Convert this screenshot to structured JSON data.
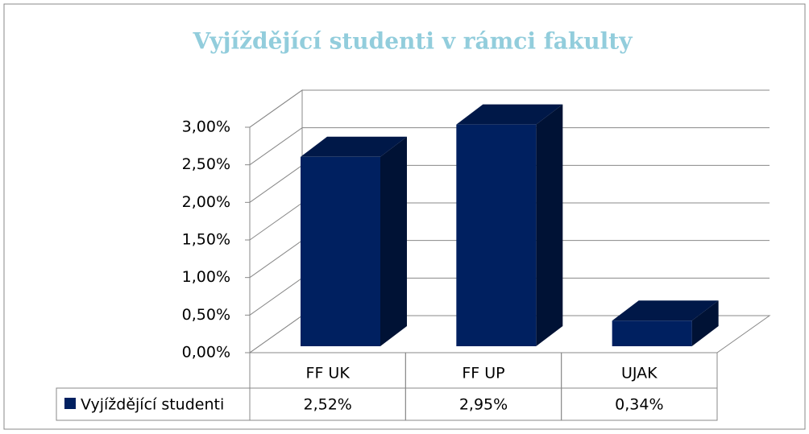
{
  "chart_data": {
    "type": "bar",
    "title": "Vyjíždějící studenti v rámci fakulty",
    "categories": [
      "FF UK",
      "FF UP",
      "UJAK"
    ],
    "series": [
      {
        "name": "Vyjíždějící studenti",
        "color": "#002060",
        "values": [
          2.52,
          2.95,
          0.34
        ],
        "value_labels": [
          "2,52%",
          "2,95%",
          "0,34%"
        ]
      }
    ],
    "ylim": [
      0,
      3
    ],
    "yticks": [
      {
        "value": 0,
        "label": "0,00%"
      },
      {
        "value": 0.5,
        "label": "0,50%"
      },
      {
        "value": 1,
        "label": "1,00%"
      },
      {
        "value": 1.5,
        "label": "1,50%"
      },
      {
        "value": 2,
        "label": "2,00%"
      },
      {
        "value": 2.5,
        "label": "2,50%"
      },
      {
        "value": 3,
        "label": "3,00%"
      }
    ],
    "grid": true
  }
}
